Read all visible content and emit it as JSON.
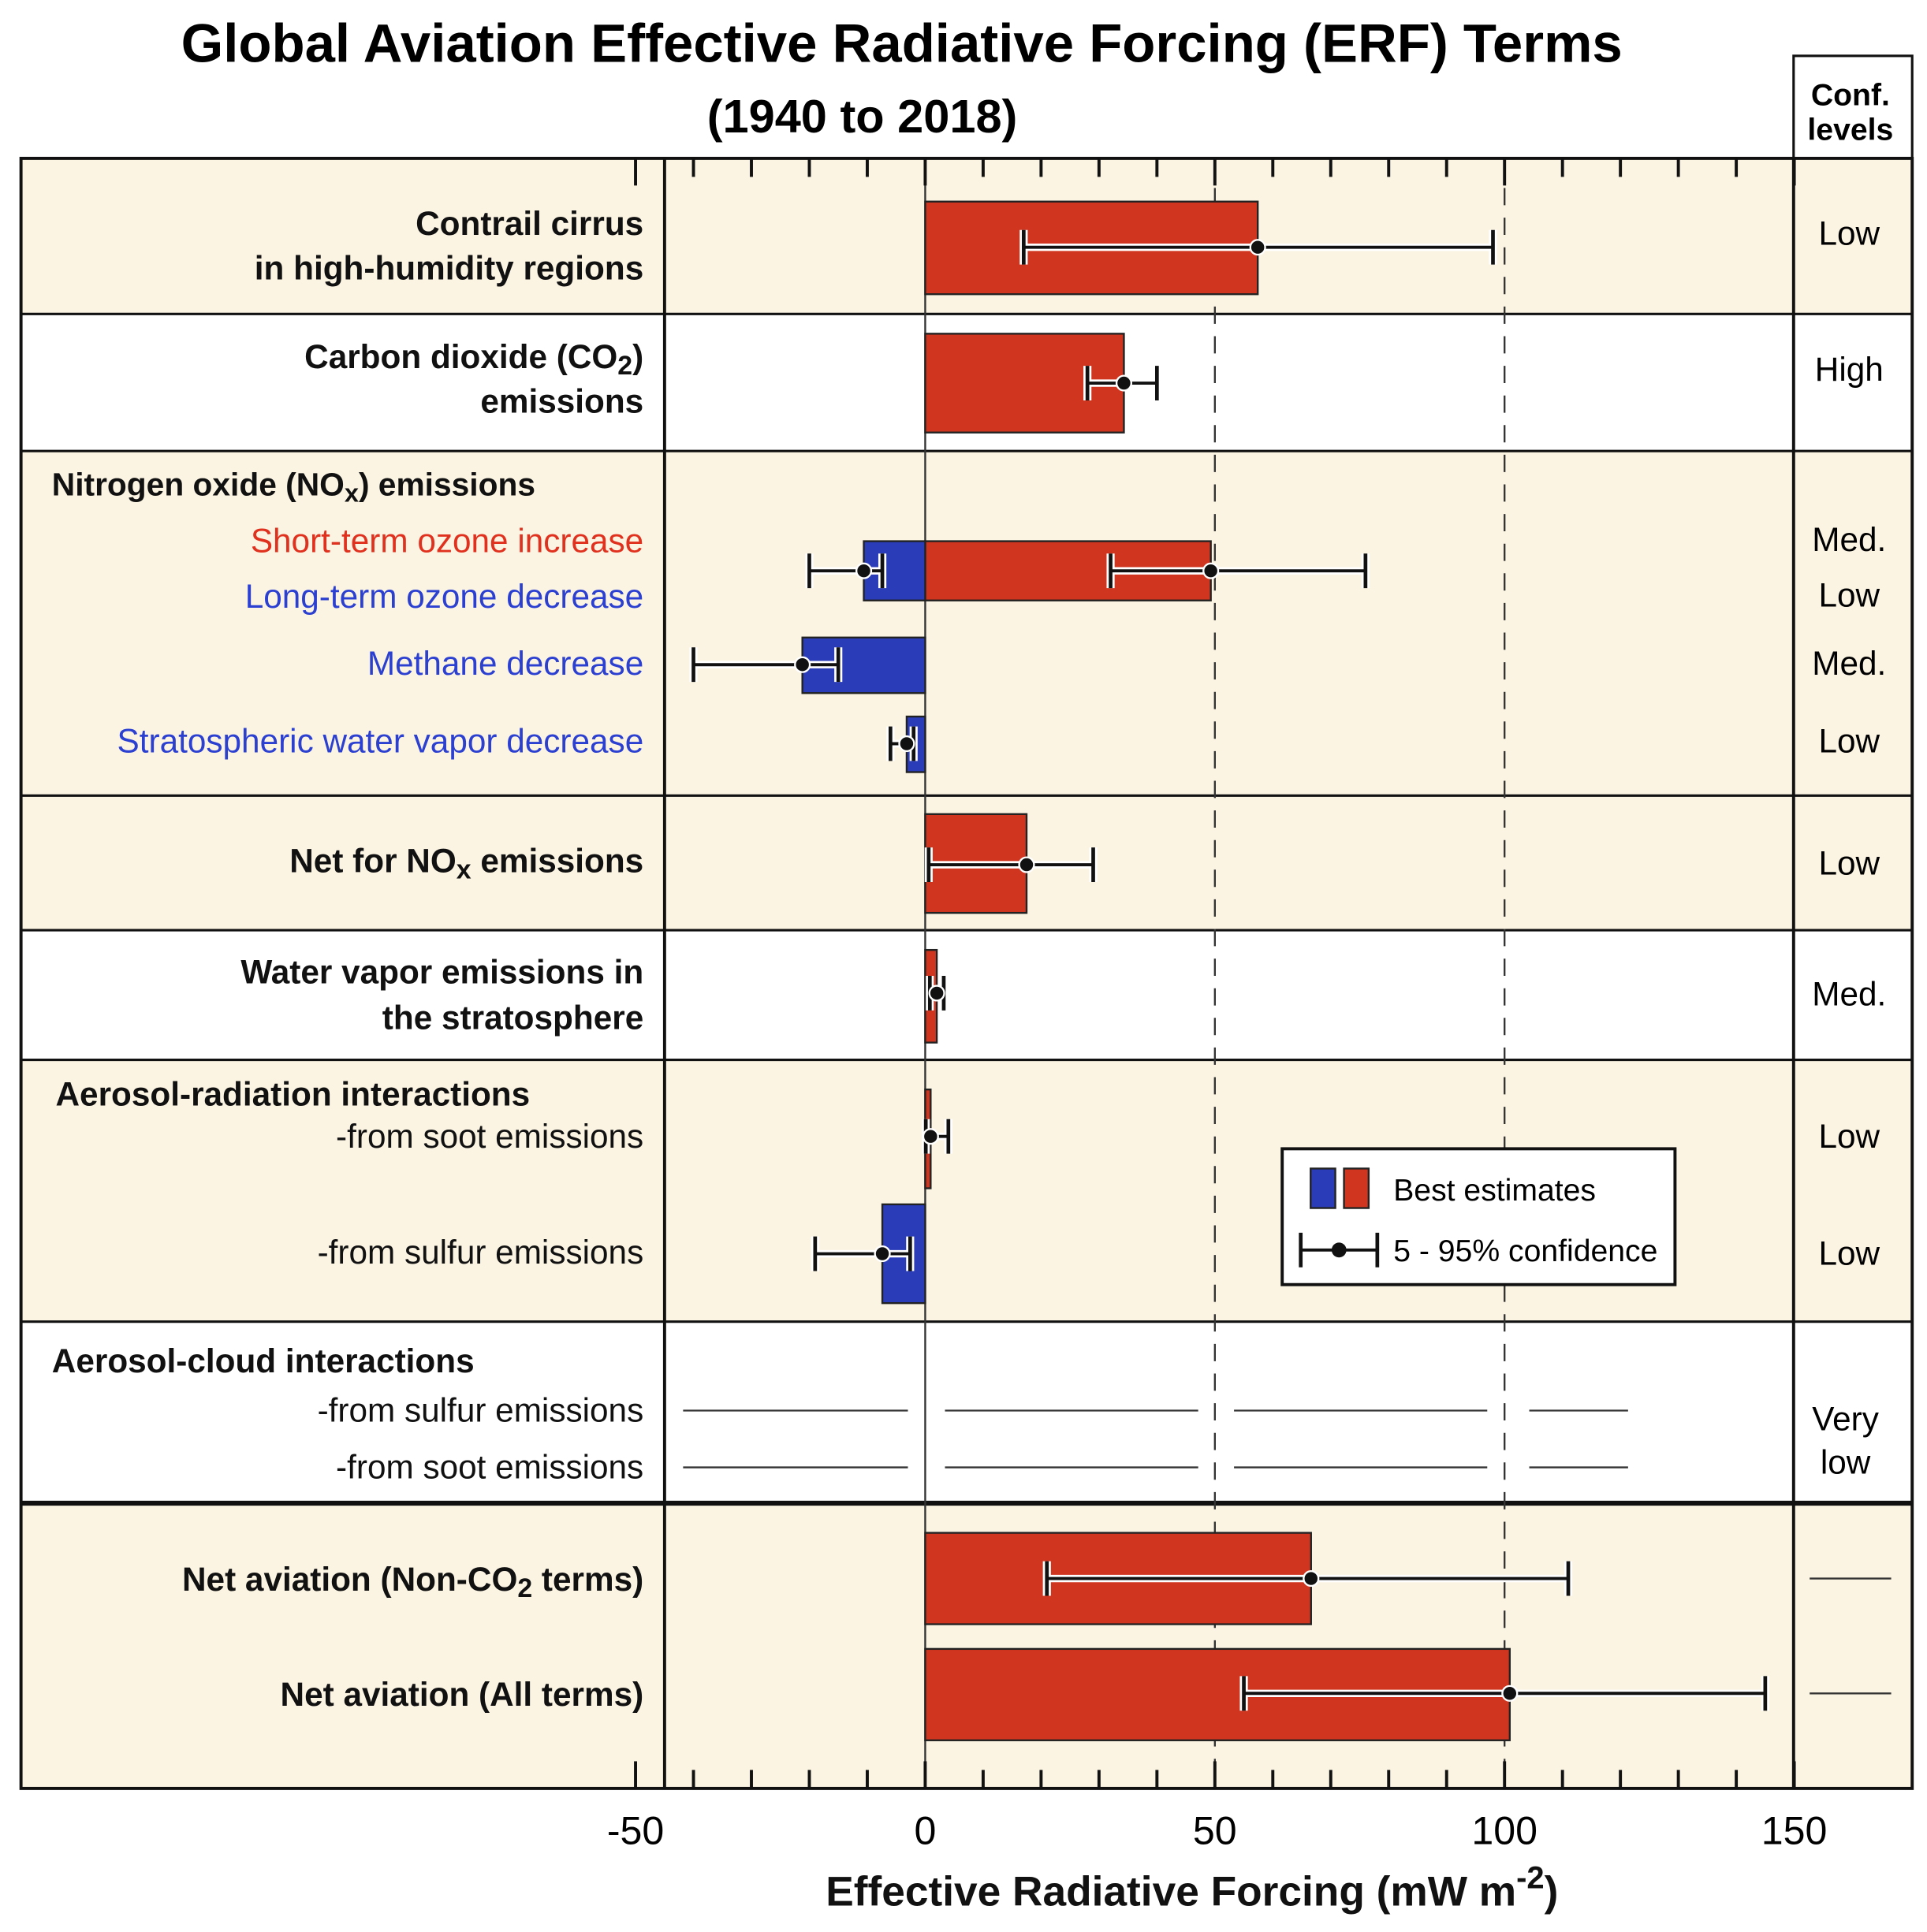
{
  "colors": {
    "positive": "#d0351f",
    "negative": "#2a3cb8",
    "panel_bg": "#fbf4e3",
    "label_red": "#e0301e",
    "label_blue": "#2b3fd0"
  },
  "chart_data": {
    "type": "bar",
    "title": "Global Aviation Effective Radiative Forcing (ERF) Terms",
    "subtitle": "(1940 to 2018)",
    "conf_header": [
      "Conf.",
      "levels"
    ],
    "xlabel": "Effective Radiative Forcing  (mW m",
    "xlabel_sup": "-2",
    "xlabel_end": ")",
    "xlim": [
      -50,
      150
    ],
    "xticks": [
      "-50",
      "0",
      "50",
      "100",
      "150"
    ],
    "xtick_values": [
      -50,
      0,
      50,
      100,
      150
    ],
    "dashed_gridlines": [
      50,
      100
    ],
    "groups": [
      {
        "bg": "cream",
        "labels": [
          {
            "lines": [
              [
                {
                  "t": "Contrail cirrus"
                }
              ],
              [
                {
                  "t": "in high-humidity regions"
                }
              ]
            ],
            "bold": true,
            "align": "right"
          }
        ]
      },
      {
        "bg": "white",
        "labels": [
          {
            "lines": [
              [
                {
                  "t": "Carbon dioxide (CO"
                },
                {
                  "t": "2",
                  "sub": true
                },
                {
                  "t": ")"
                }
              ],
              [
                {
                  "t": "emissions"
                }
              ]
            ],
            "bold": true,
            "align": "right"
          }
        ]
      },
      {
        "bg": "cream",
        "labels": [
          {
            "lines": [
              [
                {
                  "t": "Nitrogen oxide (NO"
                },
                {
                  "t": "x",
                  "sub": true
                },
                {
                  "t": ") emissions"
                }
              ]
            ],
            "bold": true,
            "align": "left"
          }
        ]
      },
      {
        "bg": "cream",
        "labels": [
          {
            "lines": [
              [
                {
                  "t": "Net for NO"
                },
                {
                  "t": "x",
                  "sub": true
                },
                {
                  "t": " emissions"
                }
              ]
            ],
            "bold": true,
            "align": "right"
          }
        ]
      },
      {
        "bg": "white",
        "labels": [
          {
            "lines": [
              [
                {
                  "t": "Water vapor emissions in"
                }
              ],
              [
                {
                  "t": "the stratosphere"
                }
              ]
            ],
            "bold": true,
            "align": "right"
          }
        ]
      },
      {
        "bg": "cream",
        "labels": [
          {
            "lines": [
              [
                {
                  "t": "Aerosol-radiation interactions"
                }
              ]
            ],
            "bold": true,
            "align": "left"
          }
        ]
      },
      {
        "bg": "white",
        "labels": [
          {
            "lines": [
              [
                {
                  "t": "Aerosol-cloud interactions"
                }
              ]
            ],
            "bold": true,
            "align": "left"
          }
        ]
      },
      {
        "bg": "cream",
        "labels": []
      }
    ],
    "series": [
      {
        "name": "Contrail cirrus in high-humidity regions",
        "value": 57.4,
        "low": 17,
        "high": 98,
        "conf": "Low"
      },
      {
        "name": "Carbon dioxide (CO2) emissions",
        "value": 34.3,
        "low": 28,
        "high": 40,
        "conf": "High"
      },
      {
        "name": "Short-term ozone increase",
        "label_color": "red",
        "value": 49.3,
        "low": 32,
        "high": 76,
        "conf": "Med."
      },
      {
        "name": "Long-term ozone decrease",
        "label_color": "blue",
        "value": -10.6,
        "low": -20,
        "high": -7.4,
        "conf": "Low"
      },
      {
        "name": "Methane decrease",
        "label_color": "blue",
        "value": -21.2,
        "low": -40,
        "high": -15,
        "conf": "Med."
      },
      {
        "name": "Stratospheric water vapor decrease",
        "label_color": "blue",
        "value": -3.2,
        "low": -6.0,
        "high": -2.0,
        "conf": "Low"
      },
      {
        "name": "Net for NOx emissions",
        "value": 17.5,
        "low": 0.6,
        "high": 29,
        "conf": "Low"
      },
      {
        "name": "Water vapor emissions in the stratosphere",
        "value": 2.0,
        "low": 0.8,
        "high": 3.2,
        "conf": "Med."
      },
      {
        "name": "-from soot emissions",
        "label_plain": true,
        "value": 0.94,
        "low": 0.1,
        "high": 4.0,
        "conf": "Low"
      },
      {
        "name": "-from sulfur emissions",
        "label_plain": true,
        "value": -7.4,
        "low": -19,
        "high": -2.6,
        "conf": "Low"
      },
      {
        "name": "-from sulfur emissions",
        "label_plain": true,
        "value": null,
        "conf": ""
      },
      {
        "name": "-from soot emissions",
        "label_plain": true,
        "value": null,
        "conf": ""
      },
      {
        "name": "Net aviation (Non-CO2 terms)",
        "value": 66.6,
        "low": 21,
        "high": 111,
        "conf": "—"
      },
      {
        "name": "Net aviation (All terms)",
        "value": 100.9,
        "low": 55,
        "high": 145,
        "conf": "—"
      }
    ],
    "net_labels": [
      [
        {
          "t": "Net aviation (Non-CO"
        },
        {
          "t": "2",
          "sub": true
        },
        {
          "t": " terms)"
        }
      ],
      [
        {
          "t": "Net aviation (All terms)"
        }
      ]
    ],
    "aerosol_cloud_conf": [
      "Very",
      "low"
    ],
    "legend": {
      "best": "Best estimates",
      "ci": "5 - 95% confidence",
      "placement": "center-right"
    }
  }
}
